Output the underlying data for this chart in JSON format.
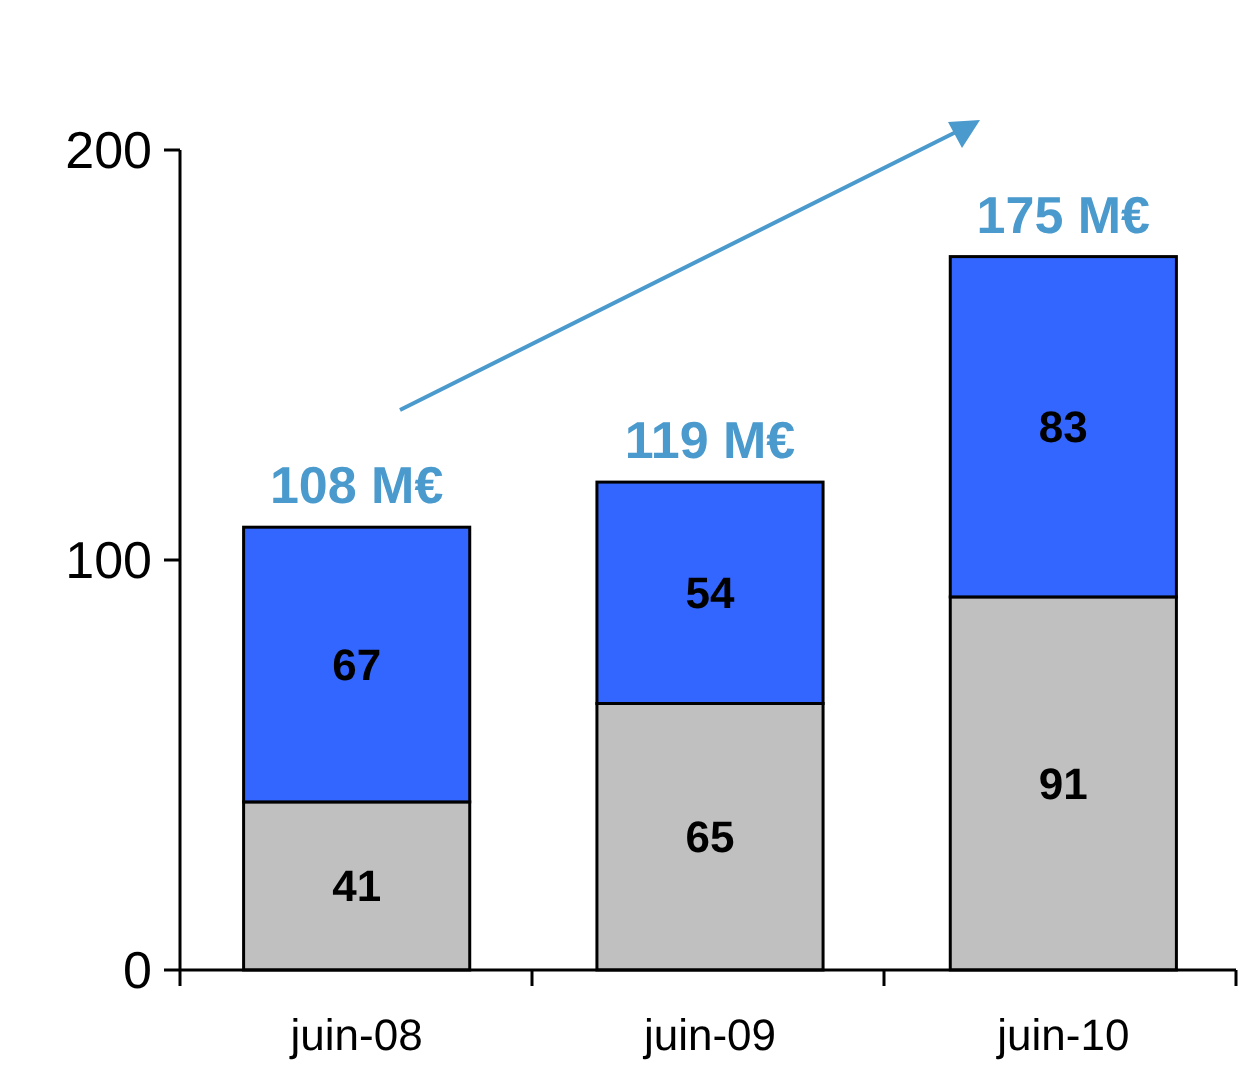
{
  "chart_data": {
    "type": "bar",
    "stacked": true,
    "categories": [
      "juin-08",
      "juin-09",
      "juin-10"
    ],
    "series": [
      {
        "color": "#c0c0c0",
        "values": [
          41,
          65,
          91
        ]
      },
      {
        "color": "#3366ff",
        "values": [
          67,
          54,
          83
        ]
      }
    ],
    "ylim": [
      0,
      200
    ],
    "yticks": [
      0,
      100,
      200
    ],
    "data_labels": true,
    "totals": [
      "108 M€",
      "119 M€",
      "175 M€"
    ]
  }
}
